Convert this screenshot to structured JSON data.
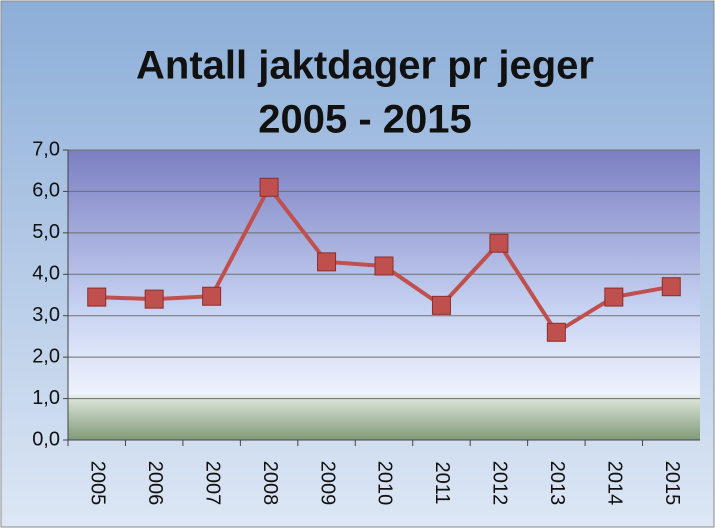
{
  "chart_data": {
    "type": "line",
    "title": [
      "Antall jaktdager pr jeger",
      "2005 - 2015"
    ],
    "categories": [
      "2005",
      "2006",
      "2007",
      "2008",
      "2009",
      "2010",
      "2011",
      "2012",
      "2013",
      "2014",
      "2015"
    ],
    "series": [
      {
        "color": "#c0504d",
        "values": [
          3.45,
          3.4,
          3.47,
          6.1,
          4.3,
          4.2,
          3.25,
          4.75,
          2.6,
          3.45,
          3.7
        ]
      }
    ],
    "ylim": [
      0,
      7
    ],
    "yticks": [
      {
        "value": 0,
        "label": "0,0"
      },
      {
        "value": 1,
        "label": "1,0"
      },
      {
        "value": 2,
        "label": "2,0"
      },
      {
        "value": 3,
        "label": "3,0"
      },
      {
        "value": 4,
        "label": "4,0"
      },
      {
        "value": 5,
        "label": "5,0"
      },
      {
        "value": 6,
        "label": "6,0"
      },
      {
        "value": 7,
        "label": "7,0"
      }
    ],
    "grid": true
  }
}
